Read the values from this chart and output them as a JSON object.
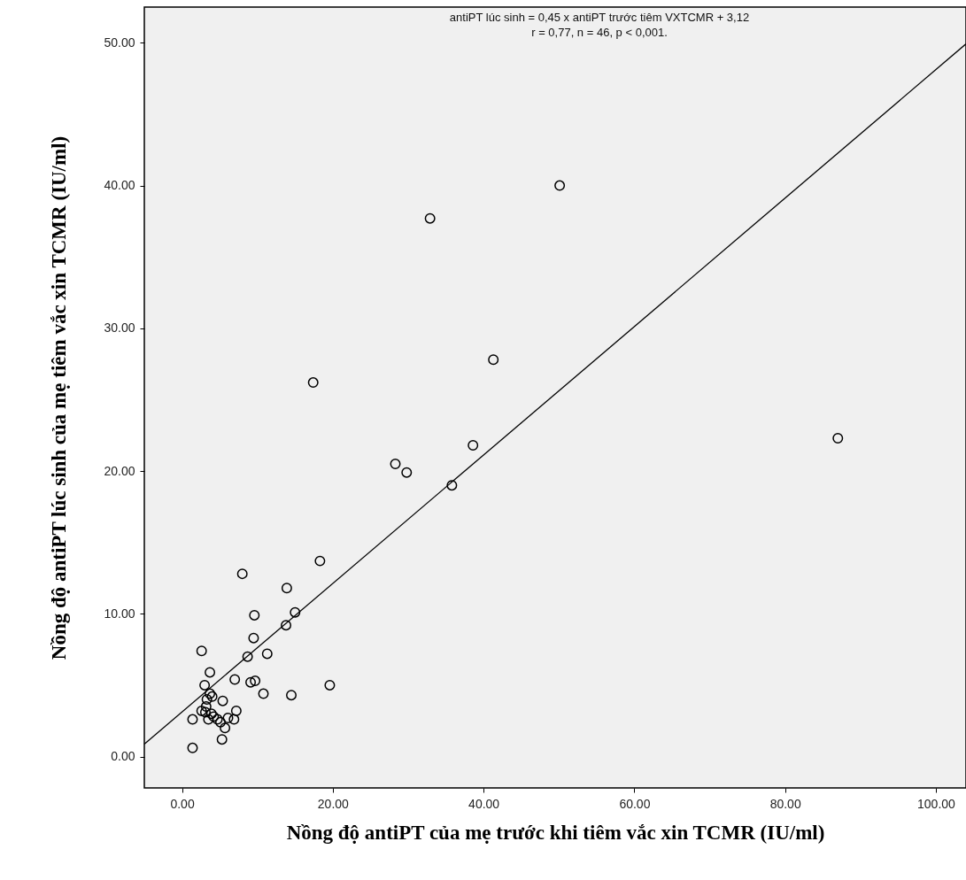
{
  "chart_data": {
    "type": "scatter",
    "xlabel": "Nồng độ antiPT của mẹ trước khi tiêm vắc xin TCMR (IU/ml)",
    "ylabel": "Nồng độ antiPT lúc sinh của mẹ tiêm vắc xin TCMR (IU/ml)",
    "annotations": [
      "antiPT lúc sinh = 0,45 x antiPT trước tiêm VXTCMR + 3,12",
      "r = 0,77, n = 46, p < 0,001."
    ],
    "xlim": [
      -5,
      104
    ],
    "ylim": [
      -2.2,
      52.5
    ],
    "xticks": [
      {
        "value": 0,
        "label": "0.00"
      },
      {
        "value": 20,
        "label": "20.00"
      },
      {
        "value": 40,
        "label": "40.00"
      },
      {
        "value": 60,
        "label": "60.00"
      },
      {
        "value": 80,
        "label": "80.00"
      },
      {
        "value": 100,
        "label": "100.00"
      }
    ],
    "yticks": [
      {
        "value": 0,
        "label": "0.00"
      },
      {
        "value": 10,
        "label": "10.00"
      },
      {
        "value": 20,
        "label": "20.00"
      },
      {
        "value": 30,
        "label": "30.00"
      },
      {
        "value": 40,
        "label": "40.00"
      },
      {
        "value": 50,
        "label": "50.00"
      }
    ],
    "grid": false,
    "series": [
      {
        "marker": "circle",
        "color": "#000000",
        "x": [
          18.3,
          8.0,
          13.9,
          15.0,
          9.6,
          13.8,
          9.5,
          2.6,
          11.3,
          8.7,
          3.7,
          7.0,
          9.1,
          9.7,
          19.6,
          3.0,
          10.8,
          14.5,
          3.7,
          4.0,
          5.4,
          3.3,
          2.6,
          3.1,
          7.2,
          1.4,
          3.5,
          4.7,
          6.1,
          6.9,
          5.7,
          5.3,
          1.4,
          3.9,
          5.1,
          3.2,
          4.2,
          17.4,
          28.3,
          29.8,
          32.9,
          35.8,
          38.6,
          41.3,
          50.1,
          87.0
        ],
        "values": [
          13.7,
          12.8,
          11.8,
          10.1,
          9.9,
          9.2,
          8.3,
          7.4,
          7.2,
          7.0,
          5.9,
          5.4,
          5.2,
          5.3,
          5.0,
          5.0,
          4.4,
          4.3,
          4.4,
          4.2,
          3.9,
          4.0,
          3.2,
          3.1,
          3.2,
          2.6,
          2.6,
          2.6,
          2.7,
          2.6,
          2.0,
          1.2,
          0.6,
          3.0,
          2.4,
          3.5,
          2.8,
          26.2,
          20.5,
          19.9,
          37.7,
          19.0,
          21.8,
          27.8,
          40.0,
          22.3
        ]
      },
      {
        "type": "line",
        "color": "#000000",
        "x": [
          -5,
          104
        ],
        "values": [
          0.87,
          49.92
        ],
        "line_style": "solid"
      }
    ]
  }
}
